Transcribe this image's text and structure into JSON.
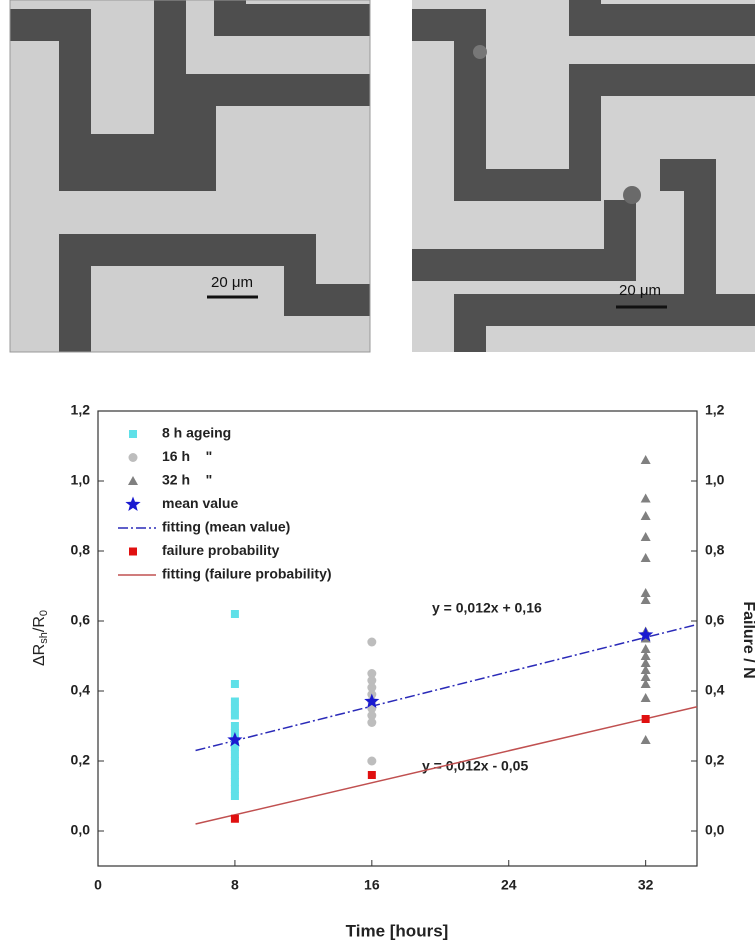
{
  "images": [
    {
      "scale_label": "20 μm"
    },
    {
      "scale_label": "20 μm"
    }
  ],
  "chart_data": {
    "type": "scatter",
    "xlabel": "Time [hours]",
    "ylabel": [
      "ΔR",
      "sh",
      "/R",
      "0"
    ],
    "y2label": "Failure / N",
    "xlim": [
      0,
      35
    ],
    "xticks": [
      0,
      8,
      16,
      24,
      32
    ],
    "ylim": [
      -0.1,
      1.2
    ],
    "yticks": [
      {
        "value": 0,
        "label": "0,0"
      },
      {
        "value": 0.2,
        "label": "0,2"
      },
      {
        "value": 0.4,
        "label": "0,4"
      },
      {
        "value": 0.6,
        "label": "0,6"
      },
      {
        "value": 0.8,
        "label": "0,8"
      },
      {
        "value": 1.0,
        "label": "1,0"
      },
      {
        "value": 1.2,
        "label": "1,2"
      }
    ],
    "y2lim": [
      -0.1,
      1.2
    ],
    "y2ticks": [
      {
        "value": 0,
        "label": "0,0"
      },
      {
        "value": 0.2,
        "label": "0,2"
      },
      {
        "value": 0.4,
        "label": "0,4"
      },
      {
        "value": 0.6,
        "label": "0,6"
      },
      {
        "value": 0.8,
        "label": "0,8"
      },
      {
        "value": 1.0,
        "label": "1,0"
      },
      {
        "value": 1.2,
        "label": "1,2"
      }
    ],
    "series": [
      {
        "name": "8 h ageing",
        "color": "#5fe0e8",
        "marker": "square",
        "x": [
          8,
          8,
          8,
          8,
          8,
          8,
          8,
          8,
          8,
          8,
          8,
          8,
          8,
          8,
          8,
          8
        ],
        "values": [
          0.62,
          0.42,
          0.37,
          0.35,
          0.33,
          0.3,
          0.28,
          0.26,
          0.24,
          0.22,
          0.2,
          0.18,
          0.16,
          0.14,
          0.12,
          0.1
        ]
      },
      {
        "name": "16 h    \"",
        "color": "#bdbdbd",
        "marker": "circle",
        "x": [
          16,
          16,
          16,
          16,
          16,
          16,
          16,
          16,
          16,
          16
        ],
        "values": [
          0.54,
          0.45,
          0.43,
          0.41,
          0.39,
          0.37,
          0.35,
          0.33,
          0.31,
          0.2
        ]
      },
      {
        "name": "32 h    \"",
        "color": "#808080",
        "marker": "triangle",
        "x": [
          32,
          32,
          32,
          32,
          32,
          32,
          32,
          32,
          32,
          32,
          32,
          32,
          32,
          32,
          32,
          32,
          32
        ],
        "values": [
          1.06,
          0.95,
          0.9,
          0.84,
          0.78,
          0.68,
          0.66,
          0.57,
          0.55,
          0.52,
          0.5,
          0.48,
          0.46,
          0.44,
          0.42,
          0.38,
          0.26
        ]
      },
      {
        "name": "mean value",
        "color": "#1a1ad0",
        "marker": "star",
        "x": [
          8,
          16,
          32
        ],
        "values": [
          0.26,
          0.37,
          0.56
        ]
      },
      {
        "name": "fitting (mean value)",
        "color": "#2a2ab8",
        "marker": "dashdot",
        "x": [
          5.7,
          35
        ],
        "values": [
          0.23,
          0.59
        ]
      },
      {
        "name": "failure probability",
        "color": "#e01010",
        "marker": "square",
        "x": [
          8,
          16,
          32
        ],
        "values": [
          0.035,
          0.16,
          0.32
        ],
        "axis": "y2"
      },
      {
        "name": "fitting (failure probability)",
        "color": "#c05050",
        "marker": "solid",
        "x": [
          5.7,
          35
        ],
        "values": [
          0.02,
          0.355
        ],
        "axis": "y2"
      }
    ],
    "annotations": [
      "y = 0,012x + 0,16",
      "y = 0,012x - 0,05"
    ]
  }
}
